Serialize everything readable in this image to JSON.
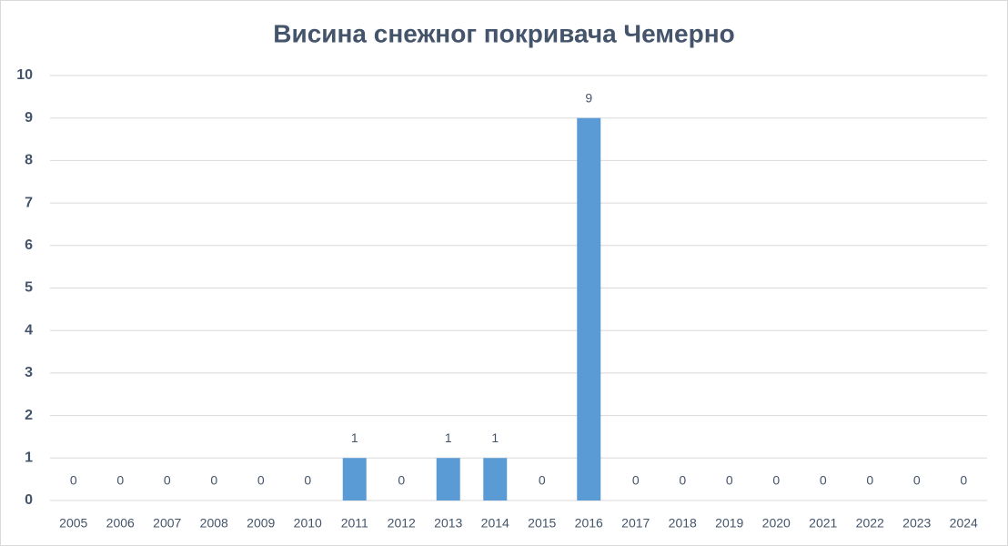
{
  "chart_data": {
    "type": "bar",
    "title": "Висина снежног покривача Чемерно",
    "categories": [
      "2005",
      "2006",
      "2007",
      "2008",
      "2009",
      "2010",
      "2011",
      "2012",
      "2013",
      "2014",
      "2015",
      "2016",
      "2017",
      "2018",
      "2019",
      "2020",
      "2021",
      "2022",
      "2023",
      "2024"
    ],
    "values": [
      0,
      0,
      0,
      0,
      0,
      0,
      1,
      0,
      1,
      1,
      0,
      9,
      0,
      0,
      0,
      0,
      0,
      0,
      0,
      0
    ],
    "color": "#5b9bd5",
    "ylim": [
      0,
      10
    ],
    "yticks": [
      0,
      1,
      2,
      3,
      4,
      5,
      6,
      7,
      8,
      9,
      10
    ],
    "grid": true
  }
}
